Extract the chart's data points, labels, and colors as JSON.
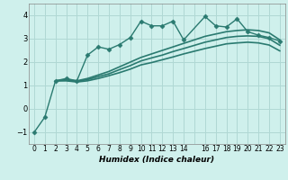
{
  "bg_color": "#cff0ec",
  "grid_color": "#b0d8d4",
  "line_color": "#2a7a70",
  "xlabel": "Humidex (Indice chaleur)",
  "xlim": [
    -0.5,
    23.5
  ],
  "ylim": [
    -1.5,
    4.5
  ],
  "yticks": [
    -1,
    0,
    1,
    2,
    3,
    4
  ],
  "xtick_labels": [
    "0",
    "1",
    "2",
    "3",
    "4",
    "5",
    "6",
    "7",
    "8",
    "9",
    "10",
    "11",
    "12",
    "13",
    "14",
    "",
    "16",
    "17",
    "18",
    "19",
    "20",
    "21",
    "22",
    "23"
  ],
  "series": [
    {
      "x": [
        0,
        1,
        2,
        3,
        4,
        5,
        6,
        7,
        8,
        9,
        10,
        11,
        12,
        13,
        14,
        16,
        17,
        18,
        19,
        20,
        21,
        22,
        23
      ],
      "y": [
        -1.0,
        -0.35,
        1.2,
        1.3,
        1.2,
        2.3,
        2.65,
        2.55,
        2.75,
        3.05,
        3.75,
        3.55,
        3.55,
        3.75,
        2.95,
        3.95,
        3.55,
        3.5,
        3.85,
        3.3,
        3.15,
        3.05,
        2.9
      ],
      "marker": "D",
      "markersize": 2.5,
      "linestyle": "-",
      "linewidth": 1.0
    },
    {
      "x": [
        2,
        3,
        4,
        5,
        6,
        7,
        8,
        9,
        10,
        11,
        12,
        13,
        14,
        16,
        17,
        18,
        19,
        20,
        21,
        22,
        23
      ],
      "y": [
        1.2,
        1.25,
        1.2,
        1.3,
        1.45,
        1.6,
        1.8,
        2.0,
        2.2,
        2.35,
        2.5,
        2.65,
        2.8,
        3.1,
        3.2,
        3.3,
        3.35,
        3.38,
        3.35,
        3.25,
        2.95
      ],
      "marker": null,
      "markersize": 0,
      "linestyle": "-",
      "linewidth": 1.2
    },
    {
      "x": [
        2,
        3,
        4,
        5,
        6,
        7,
        8,
        9,
        10,
        11,
        12,
        13,
        14,
        16,
        17,
        18,
        19,
        20,
        21,
        22,
        23
      ],
      "y": [
        1.2,
        1.22,
        1.18,
        1.25,
        1.38,
        1.5,
        1.68,
        1.85,
        2.05,
        2.18,
        2.3,
        2.45,
        2.58,
        2.85,
        2.95,
        3.05,
        3.1,
        3.12,
        3.1,
        3.0,
        2.72
      ],
      "marker": null,
      "markersize": 0,
      "linestyle": "-",
      "linewidth": 1.2
    },
    {
      "x": [
        2,
        3,
        4,
        5,
        6,
        7,
        8,
        9,
        10,
        11,
        12,
        13,
        14,
        16,
        17,
        18,
        19,
        20,
        21,
        22,
        23
      ],
      "y": [
        1.2,
        1.2,
        1.15,
        1.2,
        1.3,
        1.42,
        1.55,
        1.7,
        1.88,
        1.98,
        2.1,
        2.22,
        2.35,
        2.58,
        2.68,
        2.78,
        2.82,
        2.85,
        2.82,
        2.73,
        2.48
      ],
      "marker": null,
      "markersize": 0,
      "linestyle": "-",
      "linewidth": 1.2
    }
  ]
}
